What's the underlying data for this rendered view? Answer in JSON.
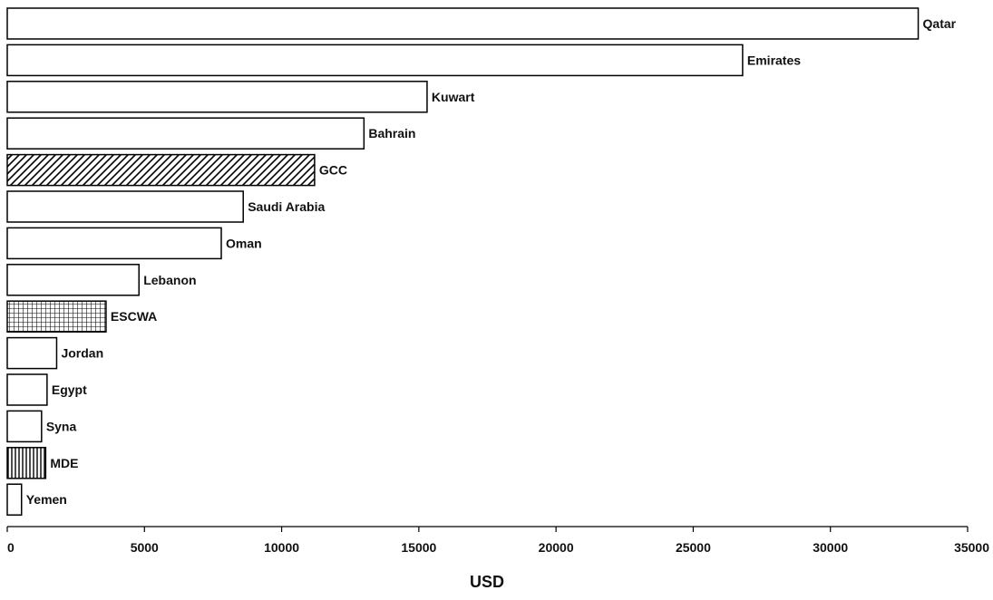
{
  "chart_data": {
    "type": "bar",
    "orientation": "horizontal",
    "title": "",
    "xlabel": "USD",
    "ylabel": "",
    "xlim": [
      0,
      35000
    ],
    "x_ticks": [
      0,
      5000,
      10000,
      15000,
      20000,
      25000,
      30000,
      35000
    ],
    "grid": false,
    "legend": "none",
    "categories": [
      "Qatar",
      "Emirates",
      "Kuwart",
      "Bahrain",
      "GCC",
      "Saudi Arabia",
      "Oman",
      "Lebanon",
      "ESCWA",
      "Jordan",
      "Egypt",
      "Syna",
      "MDE",
      "Yemen"
    ],
    "values": [
      33200,
      26800,
      15300,
      13000,
      11200,
      8600,
      7800,
      4800,
      3600,
      1800,
      1450,
      1250,
      1400,
      520
    ],
    "patterns": [
      "none",
      "none",
      "none",
      "none",
      "diagonal",
      "none",
      "none",
      "none",
      "crosshatch",
      "none",
      "none",
      "none",
      "vertical",
      "none"
    ],
    "colors": {
      "bar_fill": "#ffffff",
      "bar_stroke": "#000000",
      "text": "#111111"
    }
  }
}
